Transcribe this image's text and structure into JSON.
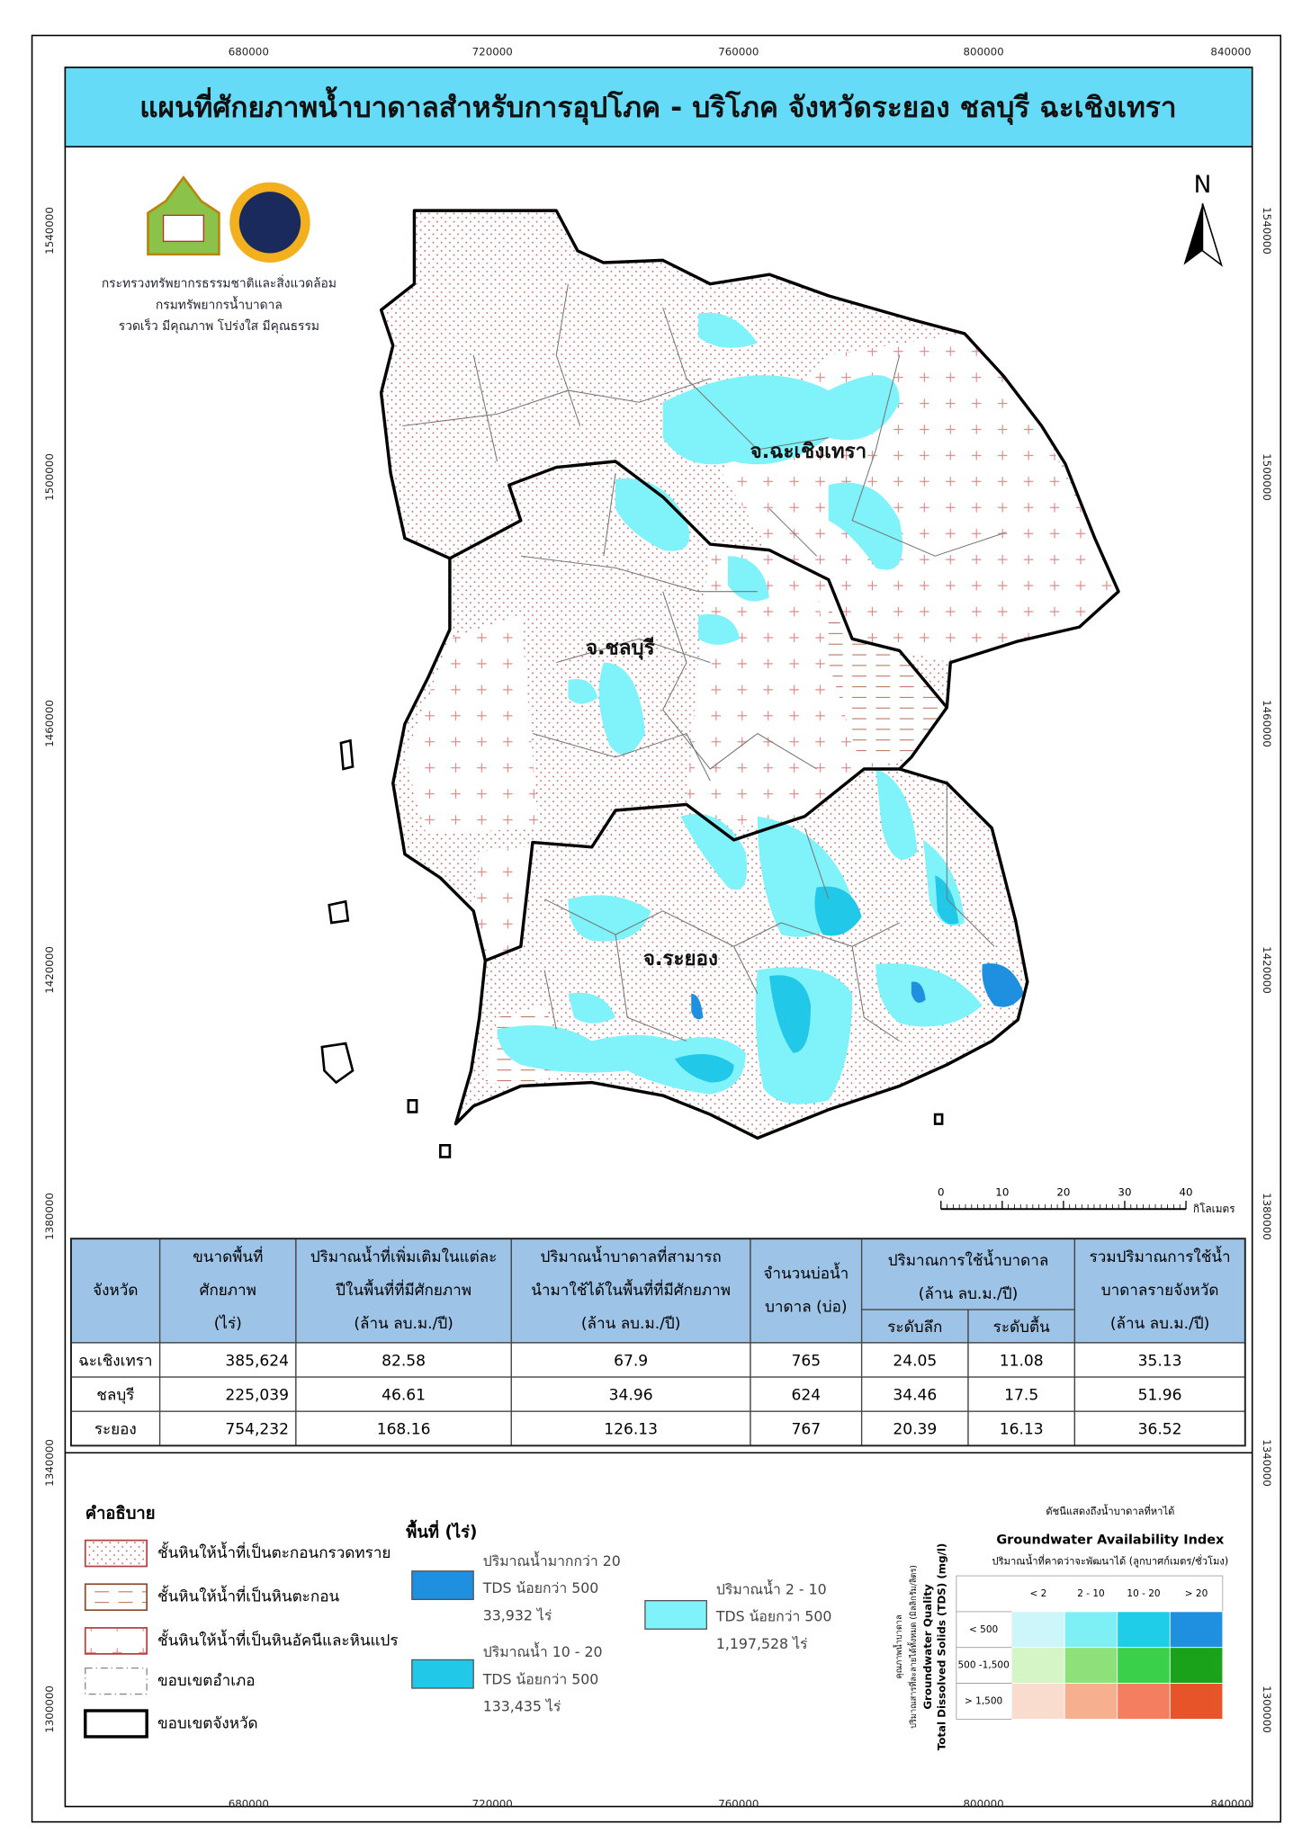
{
  "title": "แผนที่ศักยภาพน้ำบาดาลสำหรับการอุปโภค - บริโภค จังหวัดระยอง ชลบุรี ฉะเชิงเทรา",
  "agency": [
    "กระทรวงทรัพยากรธรรมชาติและสิ่งแวดล้อม",
    "กรมทรัพยากรน้ำบาดาล",
    "รวดเร็ว มีคุณภาพ โปร่งใส มีคุณธรรม"
  ],
  "coordinates": {
    "eastings": [
      "680000",
      "720000",
      "760000",
      "800000",
      "840000"
    ],
    "northings": [
      "1540000",
      "1500000",
      "1460000",
      "1420000",
      "1380000",
      "1340000",
      "1300000"
    ]
  },
  "north": "N",
  "provinces": [
    "จ.ฉะเชิงเทรา",
    "จ.ชลบุรี",
    "จ.ระยอง"
  ],
  "scale_bar": {
    "ticks": [
      "0",
      "10",
      "20",
      "30",
      "40"
    ],
    "unit": "กิโลเมตร"
  },
  "table": {
    "headers": [
      {
        "lines": [
          "จังหวัด"
        ]
      },
      {
        "lines": [
          "ขนาดพื้นที่",
          "ศักยภาพ",
          "(ไร่)"
        ]
      },
      {
        "lines": [
          "ปริมาณน้ำที่เพิ่มเติมในแต่ละ",
          "ปีในพื้นที่ที่มีศักยภาพ",
          "(ล้าน ลบ.ม./ปี)"
        ]
      },
      {
        "lines": [
          "ปริมาณน้ำบาดาลที่สามารถ",
          "นำมาใช้ได้ในพื้นที่ที่มีศักยภาพ",
          "(ล้าน ลบ.ม./ปี)"
        ]
      },
      {
        "lines": [
          "จำนวนบ่อน้ำ",
          "บาดาล (บ่อ)"
        ]
      },
      {
        "lines": [
          "ปริมาณการใช้น้ำบาดาล",
          "(ล้าน ลบ.ม./ปี)"
        ],
        "sub": [
          "ระดับลึก",
          "ระดับตื้น"
        ]
      },
      {
        "lines": [
          "รวมปริมาณการใช้น้ำ",
          "บาดาลรายจังหวัด",
          "(ล้าน ลบ.ม./ปี)"
        ]
      }
    ],
    "rows": [
      [
        "ฉะเชิงเทรา",
        "385,624",
        "82.58",
        "67.9",
        "765",
        "24.05",
        "11.08",
        "35.13"
      ],
      [
        "ชลบุรี",
        "225,039",
        "46.61",
        "34.96",
        "624",
        "34.46",
        "17.5",
        "51.96"
      ],
      [
        "ระยอง",
        "754,232",
        "168.16",
        "126.13",
        "767",
        "20.39",
        "16.13",
        "36.52"
      ]
    ]
  },
  "legend": {
    "title": "คำอธิบาย",
    "items": [
      "ชั้นหินให้น้ำที่เป็นตะกอนกรวดทราย",
      "ชั้นหินให้น้ำที่เป็นหินตะกอน",
      "ชั้นหินให้น้ำที่เป็นหินอัคนีและหินแปร",
      "ขอบเขตอำเภอ",
      "ขอบเขตจังหวัด"
    ],
    "area_title": "พื้นที่ (ไร่)",
    "classes": [
      {
        "label": "ปริมาณน้ำมากกว่า 20",
        "tds": "TDS น้อยกว่า 500",
        "area": "33,932 ไร่",
        "color": "#1f8fdf"
      },
      {
        "label": "ปริมาณน้ำ 10 - 20",
        "tds": "TDS น้อยกว่า 500",
        "area": "133,435 ไร่",
        "color": "#22c8e8"
      },
      {
        "label": "ปริมาณน้ำ 2 - 10",
        "tds": "TDS น้อยกว่า 500",
        "area": "1,197,528 ไร่",
        "color": "#80f2fa"
      }
    ]
  },
  "index": {
    "caption": "ดัชนีแสดงถึงน้ำบาดาลที่หาได้",
    "title": "Groundwater Availability Index",
    "x_title": "ปริมาณน้ำที่คาดว่าจะพัฒนาได้ (ลูกบาศก์เมตร/ชั่วโมง)",
    "y_titles": [
      "คุณภาพน้ำบาดาล",
      "ปริมาณสารที่ละลายได้ทั้งหมด (มิลลิกรัม/ลิตร)",
      "Groundwater Quality",
      "Total Dissolved Solids (TDS) (mg/l)"
    ],
    "columns": [
      "< 2",
      "2 - 10",
      "10 - 20",
      "> 20"
    ],
    "rows": [
      "< 500",
      "500 -1,500",
      "> 1,500"
    ],
    "colors": [
      [
        "#cdf6fa",
        "#7ef0f5",
        "#20cde8",
        "#1f8fdf"
      ],
      [
        "#d6f5c6",
        "#8ee07a",
        "#3bd04a",
        "#1aa31a"
      ],
      [
        "#fadccf",
        "#f6b08f",
        "#f37e60",
        "#e8542a"
      ]
    ]
  }
}
